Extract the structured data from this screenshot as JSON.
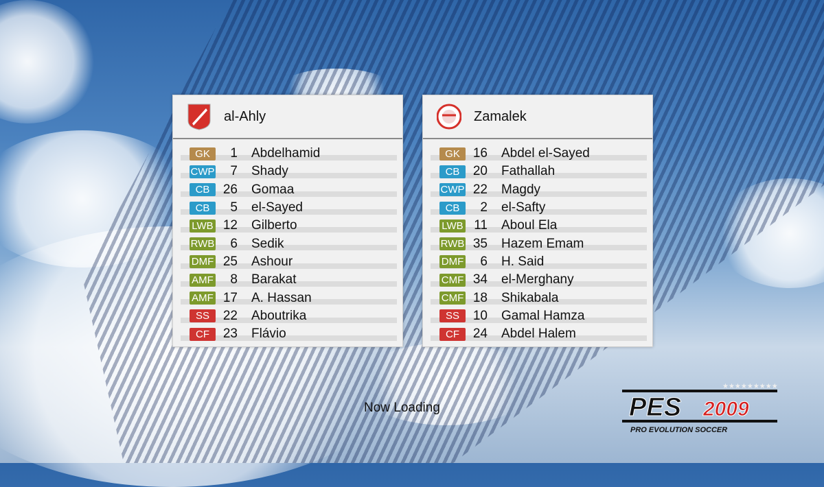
{
  "colors": {
    "GK": "#b58a4c",
    "CB": "#2b9bc9",
    "CWP": "#2b9bc9",
    "LWB": "#7d9a2c",
    "RWB": "#7d9a2c",
    "DMF": "#7d9a2c",
    "AMF": "#7d9a2c",
    "CMF": "#7d9a2c",
    "SS": "#cf3431",
    "CF": "#cf3431"
  },
  "home": {
    "name": "al-Ahly",
    "crest": "al-ahly-crest-icon",
    "players": [
      {
        "pos": "GK",
        "num": "1",
        "name": "Abdelhamid"
      },
      {
        "pos": "CWP",
        "num": "7",
        "name": "Shady"
      },
      {
        "pos": "CB",
        "num": "26",
        "name": "Gomaa"
      },
      {
        "pos": "CB",
        "num": "5",
        "name": "el-Sayed"
      },
      {
        "pos": "LWB",
        "num": "12",
        "name": "Gilberto"
      },
      {
        "pos": "RWB",
        "num": "6",
        "name": "Sedik"
      },
      {
        "pos": "DMF",
        "num": "25",
        "name": "Ashour"
      },
      {
        "pos": "AMF",
        "num": "8",
        "name": "Barakat"
      },
      {
        "pos": "AMF",
        "num": "17",
        "name": "A. Hassan"
      },
      {
        "pos": "SS",
        "num": "22",
        "name": "Aboutrika"
      },
      {
        "pos": "CF",
        "num": "23",
        "name": "Flávio"
      }
    ]
  },
  "away": {
    "name": "Zamalek",
    "crest": "zamalek-crest-icon",
    "players": [
      {
        "pos": "GK",
        "num": "16",
        "name": "Abdel el-Sayed"
      },
      {
        "pos": "CB",
        "num": "20",
        "name": "Fathallah"
      },
      {
        "pos": "CWP",
        "num": "22",
        "name": "Magdy"
      },
      {
        "pos": "CB",
        "num": "2",
        "name": "el-Safty"
      },
      {
        "pos": "LWB",
        "num": "11",
        "name": "Aboul Ela"
      },
      {
        "pos": "RWB",
        "num": "35",
        "name": "Hazem Emam"
      },
      {
        "pos": "DMF",
        "num": "6",
        "name": "H. Said"
      },
      {
        "pos": "CMF",
        "num": "34",
        "name": "el-Merghany"
      },
      {
        "pos": "CMF",
        "num": "18",
        "name": "Shikabala"
      },
      {
        "pos": "SS",
        "num": "10",
        "name": "Gamal Hamza"
      },
      {
        "pos": "CF",
        "num": "24",
        "name": "Abdel Halem"
      }
    ]
  },
  "status": "Now Loading",
  "logo": {
    "main": "PES",
    "year": "2009",
    "sub": "PRO EVOLUTION SOCCER"
  }
}
